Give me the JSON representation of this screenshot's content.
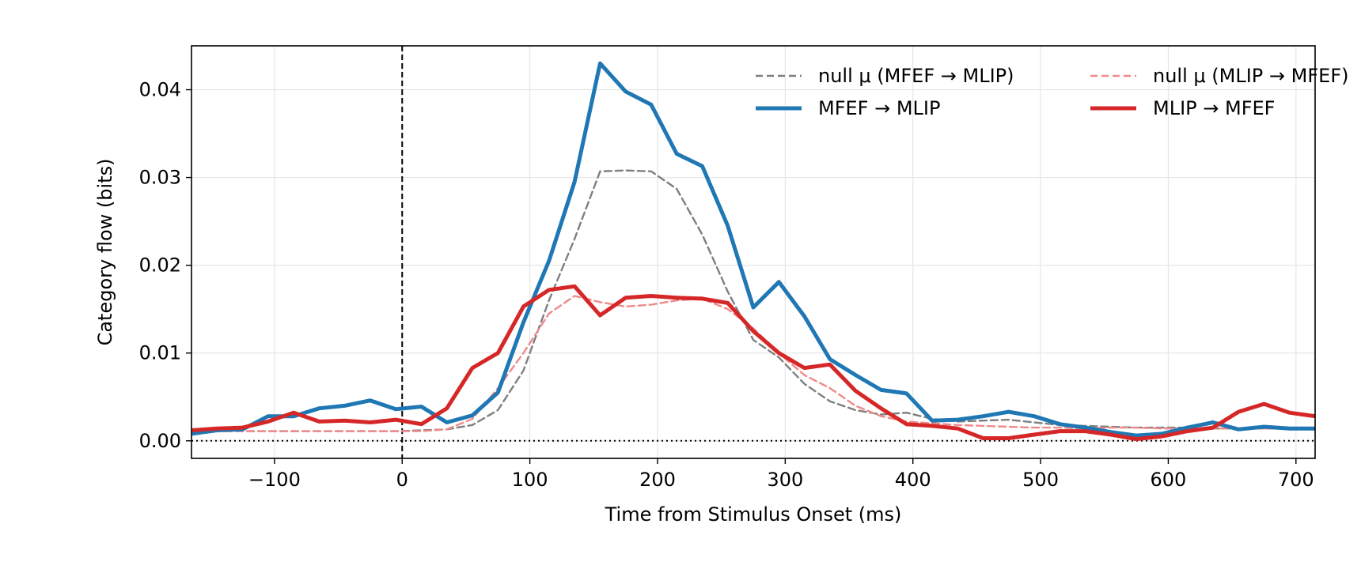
{
  "chart_data": {
    "type": "line",
    "title": "",
    "xlabel": "Time from Stimulus Onset (ms)",
    "ylabel": "Category flow (bits)",
    "xlim": [
      -165,
      715
    ],
    "ylim": [
      -0.002,
      0.045
    ],
    "xticks": [
      -100,
      0,
      100,
      200,
      300,
      400,
      500,
      600,
      700
    ],
    "xtick_labels": [
      "−100",
      "0",
      "100",
      "200",
      "300",
      "400",
      "500",
      "600",
      "700"
    ],
    "yticks": [
      0,
      0.01,
      0.02,
      0.03,
      0.04
    ],
    "ytick_labels": [
      "0.00",
      "0.01",
      "0.02",
      "0.03",
      "0.04"
    ],
    "grid": true,
    "legend_position": "top-right",
    "reference_lines": {
      "vertical_dashed_at_x": 0,
      "horizontal_dotted_at_y": 0
    },
    "x": [
      -165,
      -145,
      -125,
      -105,
      -85,
      -65,
      -45,
      -25,
      -5,
      15,
      35,
      55,
      75,
      95,
      115,
      135,
      155,
      175,
      195,
      215,
      235,
      255,
      275,
      295,
      315,
      335,
      355,
      375,
      395,
      415,
      435,
      455,
      475,
      495,
      515,
      535,
      555,
      575,
      595,
      615,
      635,
      655,
      675,
      695,
      715
    ],
    "series": [
      {
        "name": "null μ (MFEF → MLIP)",
        "color": "#7f7f7f",
        "style": "dashed",
        "values": [
          0.0012,
          0.0011,
          0.0011,
          0.0011,
          0.0011,
          0.0011,
          0.0011,
          0.0011,
          0.0011,
          0.0012,
          0.0013,
          0.0018,
          0.0035,
          0.008,
          0.016,
          0.023,
          0.0307,
          0.0308,
          0.0307,
          0.0287,
          0.0235,
          0.017,
          0.0115,
          0.0095,
          0.0065,
          0.0045,
          0.0035,
          0.003,
          0.0032,
          0.0025,
          0.0022,
          0.0023,
          0.0024,
          0.0021,
          0.0018,
          0.0017,
          0.0016,
          0.0015,
          0.0015,
          0.0015,
          0.0014,
          0.0014,
          0.0014,
          0.0014,
          0.0014
        ]
      },
      {
        "name": "null μ (MLIP → MFEF)",
        "color": "#ef8a8a",
        "style": "dashed",
        "values": [
          0.0011,
          0.0011,
          0.0011,
          0.0011,
          0.0011,
          0.0011,
          0.0011,
          0.0011,
          0.0011,
          0.0011,
          0.0013,
          0.0025,
          0.006,
          0.01,
          0.0145,
          0.0165,
          0.0158,
          0.0153,
          0.0155,
          0.016,
          0.0162,
          0.015,
          0.0128,
          0.01,
          0.0075,
          0.006,
          0.004,
          0.0028,
          0.0022,
          0.002,
          0.0018,
          0.0017,
          0.0016,
          0.0015,
          0.0015,
          0.0014,
          0.0015,
          0.0015,
          0.0014,
          0.0014,
          0.0014,
          0.0014,
          0.0014,
          0.0014,
          0.0014
        ]
      },
      {
        "name": "MFEF → MLIP",
        "color": "#1f77b4",
        "style": "solid",
        "values": [
          0.0008,
          0.0012,
          0.0013,
          0.0028,
          0.0028,
          0.0037,
          0.004,
          0.0046,
          0.0036,
          0.0039,
          0.0021,
          0.0029,
          0.0055,
          0.0135,
          0.0205,
          0.0295,
          0.043,
          0.0398,
          0.0383,
          0.0327,
          0.0313,
          0.0245,
          0.0152,
          0.0181,
          0.0142,
          0.0093,
          0.0075,
          0.0058,
          0.0054,
          0.0023,
          0.0024,
          0.0028,
          0.0033,
          0.0028,
          0.0019,
          0.0015,
          0.001,
          0.0006,
          0.0008,
          0.0015,
          0.0021,
          0.0013,
          0.0016,
          0.0014,
          0.0014
        ]
      },
      {
        "name": "MLIP → MFEF",
        "color": "#d62728",
        "style": "solid",
        "values": [
          0.0012,
          0.0014,
          0.0015,
          0.0022,
          0.0032,
          0.0022,
          0.0023,
          0.0021,
          0.0024,
          0.0019,
          0.0037,
          0.0083,
          0.01,
          0.0153,
          0.0172,
          0.0176,
          0.0143,
          0.0163,
          0.0165,
          0.0163,
          0.0162,
          0.0157,
          0.0125,
          0.01,
          0.0083,
          0.0087,
          0.0057,
          0.0037,
          0.0019,
          0.0017,
          0.0014,
          0.0003,
          0.0003,
          0.0007,
          0.0011,
          0.0011,
          0.0007,
          0.0002,
          0.0005,
          0.0011,
          0.0015,
          0.0033,
          0.0042,
          0.0032,
          0.0028
        ]
      }
    ],
    "legend_order": [
      0,
      2,
      1,
      3
    ]
  }
}
